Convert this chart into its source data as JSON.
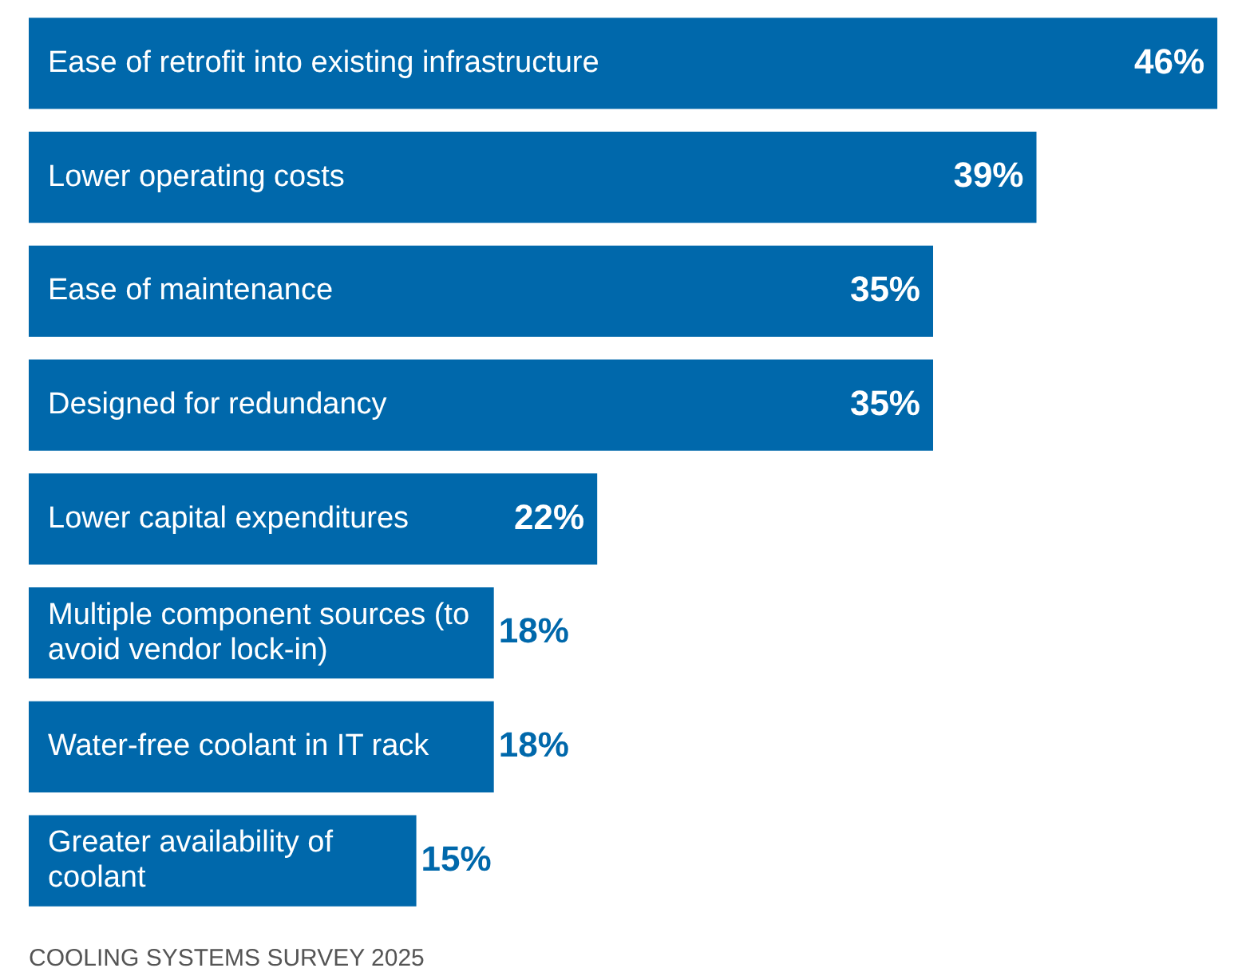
{
  "chart_data": {
    "type": "bar",
    "orientation": "horizontal",
    "categories": [
      "Ease of retrofit into existing infrastructure",
      "Lower operating costs",
      "Ease of maintenance",
      "Designed for redundancy",
      "Lower capital expenditures",
      "Multiple component sources (to avoid vendor lock-in)",
      "Water-free coolant in IT rack",
      "Greater availability of coolant"
    ],
    "values": [
      46,
      39,
      35,
      35,
      22,
      18,
      18,
      15
    ],
    "color": "#0068ab",
    "value_labels": [
      "46%",
      "39%",
      "35%",
      "35%",
      "22%",
      "18%",
      "18%",
      "15%"
    ],
    "annotations": [
      "COOLING SYSTEMS SURVEY 2025"
    ]
  }
}
